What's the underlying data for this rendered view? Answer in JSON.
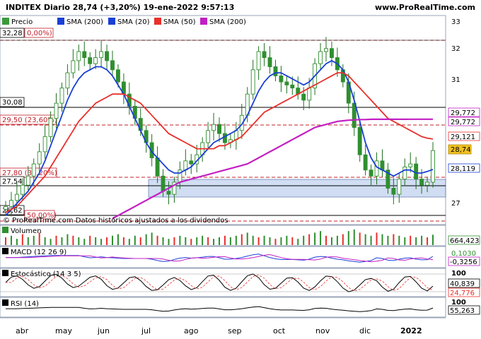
{
  "header": {
    "title": "INDITEX Diario 28,74 (+3,20%) 19-ene-2022 9:57:13",
    "site": "www.ProRealTime.com",
    "copyright": "© ProRealTime.com  Datos históricos ajustados a los dividendos"
  },
  "legend": {
    "price": "Precio",
    "sma200a": "SMA (200)",
    "sma20": "SMA (20)",
    "sma50": "SMA (50)",
    "sma200b": "SMA (200)"
  },
  "colors": {
    "bg": "#ffffff",
    "panel_bg": "#eef2fb",
    "candle_up": "#2f8f2f",
    "candle_down": "#2f8f2f",
    "sma20": "#1a3fd6",
    "sma50": "#e8302b",
    "sma200": "#c21fc4",
    "fibo": "#c0202a",
    "zone": "#c8d8f0",
    "grid": "#b8c4d8"
  },
  "price_labels": {
    "level_3228": "32,28",
    "fib_0": "0,00%)",
    "level_3008": "30,08",
    "fib_236": "29,50 (23,60%)",
    "fib_382": "27,80 (38,20%)",
    "level_2754": "27,54",
    "level_2662": "26,62",
    "fib_50": "50,00%)"
  },
  "axis_right": {
    "ticks": [
      "33",
      "32",
      "31",
      "27"
    ],
    "box_sma200_1": "29,772",
    "box_sma200_2": "29,772",
    "box_sma50": "29,121",
    "box_price": "28,74",
    "box_sma20": "28,119"
  },
  "x_axis": {
    "months": [
      "abr",
      "may",
      "jun",
      "jul",
      "ago",
      "sep",
      "oct",
      "nov",
      "dic",
      "2022"
    ]
  },
  "volume": {
    "title": "Volumen",
    "value": "664,423"
  },
  "macd": {
    "title": "MACD (12 26 9)",
    "value1": "0,1030",
    "value2": "-0,3256"
  },
  "stochastic": {
    "title": "Estocástico (14 3 5)",
    "level": "100",
    "value1": "40,839",
    "value2": "24,776"
  },
  "rsi": {
    "title": "RSI (14)",
    "level": "100",
    "value": "55,263"
  },
  "chart_data": {
    "type": "line",
    "title": "INDITEX Diario 28,74 (+3,20%) 19-ene-2022 9:57:13",
    "ylim": [
      26.4,
      33.0
    ],
    "y_ticks": [
      33,
      32,
      31,
      27
    ],
    "x_labels": [
      "abr",
      "may",
      "jun",
      "jul",
      "ago",
      "sep",
      "oct",
      "nov",
      "dic",
      "2022"
    ],
    "series": [
      {
        "name": "Precio",
        "values": [
          26.9,
          27.1,
          27.3,
          27.6,
          27.9,
          28.3,
          28.7,
          29.2,
          29.8,
          30.3,
          30.8,
          31.3,
          31.7,
          32.0,
          31.8,
          31.6,
          31.8,
          32.0,
          31.7,
          31.4,
          31.0,
          30.6,
          30.2,
          29.8,
          29.4,
          29.0,
          28.5,
          27.9,
          27.4,
          27.3,
          27.7,
          28.1,
          28.4,
          28.3,
          28.6,
          29.0,
          29.4,
          29.6,
          29.3,
          29.0,
          29.1,
          29.4,
          29.9,
          30.6,
          31.4,
          32.0,
          31.8,
          31.5,
          31.2,
          31.0,
          30.9,
          30.8,
          30.6,
          30.4,
          30.8,
          31.6,
          32.0,
          32.1,
          31.8,
          31.4,
          31.0,
          30.3,
          29.5,
          28.6,
          28.1,
          27.9,
          28.4,
          28.1,
          27.5,
          27.3,
          27.8,
          28.2,
          28.3,
          27.8,
          27.6,
          27.7,
          28.74
        ]
      },
      {
        "name": "SMA (20)",
        "values": [
          26.6,
          26.8,
          27.0,
          27.2,
          27.4,
          27.7,
          28.0,
          28.4,
          28.9,
          29.4,
          29.9,
          30.4,
          30.8,
          31.1,
          31.3,
          31.4,
          31.5,
          31.5,
          31.4,
          31.2,
          30.9,
          30.6,
          30.2,
          29.8,
          29.4,
          29.0,
          28.7,
          28.5,
          28.3,
          28.1,
          28.0,
          28.0,
          28.1,
          28.2,
          28.4,
          28.6,
          28.8,
          29.0,
          29.1,
          29.2,
          29.3,
          29.4,
          29.6,
          29.9,
          30.3,
          30.7,
          31.0,
          31.2,
          31.3,
          31.3,
          31.2,
          31.1,
          31.0,
          30.9,
          31.0,
          31.2,
          31.4,
          31.6,
          31.7,
          31.6,
          31.4,
          31.0,
          30.4,
          29.7,
          29.0,
          28.5,
          28.2,
          28.1,
          28.0,
          27.9,
          28.0,
          28.1,
          28.1,
          28.0,
          28.0,
          28.05,
          28.119
        ]
      },
      {
        "name": "SMA (50)",
        "values": [
          26.7,
          26.8,
          26.9,
          27.1,
          27.3,
          27.5,
          27.7,
          27.9,
          28.2,
          28.5,
          28.8,
          29.1,
          29.4,
          29.7,
          29.9,
          30.1,
          30.3,
          30.4,
          30.5,
          30.6,
          30.6,
          30.6,
          30.5,
          30.4,
          30.3,
          30.1,
          29.9,
          29.7,
          29.5,
          29.3,
          29.2,
          29.1,
          29.0,
          28.9,
          28.8,
          28.8,
          28.8,
          28.8,
          28.9,
          28.9,
          29.0,
          29.1,
          29.2,
          29.4,
          29.6,
          29.8,
          30.0,
          30.1,
          30.2,
          30.3,
          30.4,
          30.5,
          30.6,
          30.7,
          30.8,
          30.9,
          31.0,
          31.1,
          31.2,
          31.3,
          31.3,
          31.2,
          31.0,
          30.8,
          30.6,
          30.4,
          30.2,
          30.0,
          29.8,
          29.7,
          29.6,
          29.5,
          29.4,
          29.3,
          29.2,
          29.15,
          29.121
        ]
      },
      {
        "name": "SMA (200)",
        "values": [
          null,
          null,
          null,
          null,
          null,
          null,
          null,
          null,
          null,
          null,
          null,
          null,
          null,
          null,
          null,
          null,
          null,
          null,
          null,
          26.5,
          26.6,
          26.7,
          26.8,
          26.9,
          27.0,
          27.1,
          27.2,
          27.3,
          27.4,
          27.5,
          27.6,
          27.7,
          27.75,
          27.8,
          27.85,
          27.9,
          27.95,
          28.0,
          28.05,
          28.1,
          28.15,
          28.2,
          28.25,
          28.3,
          28.4,
          28.5,
          28.6,
          28.7,
          28.8,
          28.9,
          29.0,
          29.1,
          29.2,
          29.3,
          29.4,
          29.5,
          29.55,
          29.6,
          29.65,
          29.7,
          29.72,
          29.74,
          29.75,
          29.76,
          29.76,
          29.77,
          29.77,
          29.77,
          29.77,
          29.77,
          29.77,
          29.77,
          29.772,
          29.772,
          29.772,
          29.772,
          29.772
        ]
      }
    ],
    "volume": [
      0.5,
      0.6,
      0.4,
      0.7,
      0.5,
      0.6,
      0.8,
      0.5,
      0.4,
      0.6,
      0.5,
      0.7,
      0.6,
      0.5,
      0.4,
      0.6,
      0.5,
      0.4,
      0.5,
      0.6,
      0.7,
      0.5,
      0.4,
      0.6,
      0.5,
      0.7,
      0.8,
      0.6,
      0.5,
      0.4,
      0.5,
      0.6,
      0.5,
      0.4,
      0.5,
      0.6,
      0.5,
      0.4,
      0.5,
      0.6,
      0.5,
      0.6,
      0.7,
      0.8,
      0.6,
      0.5,
      0.6,
      0.5,
      0.4,
      0.5,
      0.6,
      0.5,
      0.4,
      0.6,
      0.7,
      0.8,
      0.9,
      0.6,
      0.5,
      0.6,
      0.7,
      0.9,
      1.0,
      0.8,
      0.7,
      0.6,
      0.8,
      0.7,
      0.6,
      0.7,
      0.6,
      0.5,
      0.6,
      0.5,
      0.6,
      0.5,
      0.664
    ]
  }
}
